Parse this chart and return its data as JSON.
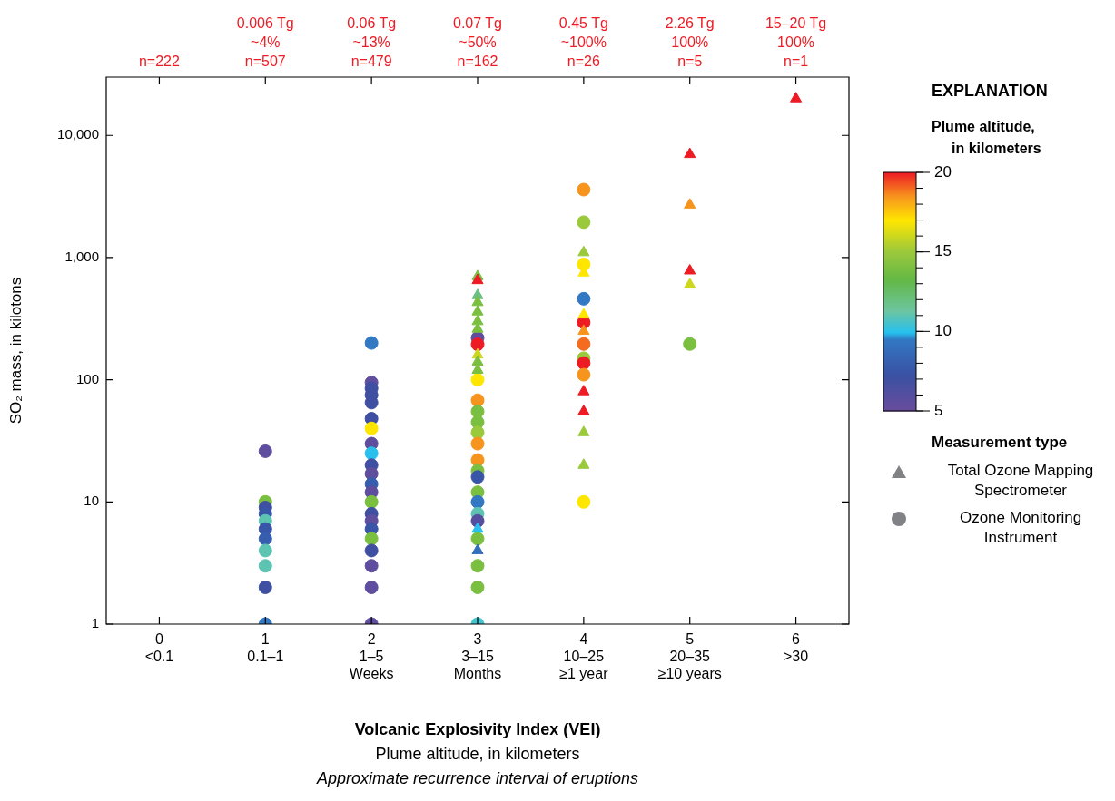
{
  "chart_data": {
    "type": "scatter",
    "xlabel": "Volcanic Explosivity Index (VEI)\nPlume altitude, in kilometers\nApproximate recurrence interval of eruptions",
    "ylabel": "SO₂ mass, in kilotons",
    "legend_title": "Measurement type",
    "clabel": "Plume altitude,\nin kilometers",
    "clim": [
      5,
      20
    ],
    "cticks": [
      5,
      10,
      15,
      20
    ],
    "categories": [
      "0\n<0.1",
      "1\n0.1–1",
      "2\n1–5\nWeeks",
      "3\n3–15\nMonths",
      "4\n10–25\n≥1 year",
      "5\n20–35\n≥10 years",
      "6\n>30"
    ],
    "ylim": [
      1,
      30000
    ],
    "yticks": [
      1,
      10,
      100,
      {
        "value": 1000,
        "label": "1,000"
      },
      {
        "value": 10000,
        "label": "10,000"
      }
    ],
    "log": "y",
    "grid": false,
    "legend": "right",
    "annotations": [
      "n=222",
      "0.006 Tg\n~4%\nn=507",
      "0.06 Tg\n~13%\nn=479",
      "0.07 Tg\n~50%\nn=162",
      "0.45 Tg\n~100%\nn=26",
      "2.26 Tg\n100%\nn=5",
      "15–20 Tg\n100%\nn=1",
      "EXPLANATION"
    ],
    "series": [
      {
        "name": "Total Ozone Mapping Spectrometer",
        "marker": "triangle",
        "colors": [
          "#7bbf41",
          "#ed1c24",
          "#69c080",
          "#7bbf41",
          "#7bbf41",
          "#7bbf41",
          "#7bbf41",
          "#ccd71e",
          "#7bbf41",
          "#7bbf41",
          "#27c0f0",
          "#346fbc",
          "#9ac93b",
          "#ffe600",
          "#ffe600",
          "#f7941d",
          "#ed1c24",
          "#ed1c24",
          "#9ac93b",
          "#9ac93b",
          "#ed1c24",
          "#f7941d",
          "#ed1c24",
          "#ccd71e",
          "#ed1c24"
        ],
        "x": [
          "3\n3–15\nMonths",
          "3\n3–15\nMonths",
          "3\n3–15\nMonths",
          "3\n3–15\nMonths",
          "3\n3–15\nMonths",
          "3\n3–15\nMonths",
          "3\n3–15\nMonths",
          "3\n3–15\nMonths",
          "3\n3–15\nMonths",
          "3\n3–15\nMonths",
          "3\n3–15\nMonths",
          "3\n3–15\nMonths",
          "4\n10–25\n≥1 year",
          "4\n10–25\n≥1 year",
          "4\n10–25\n≥1 year",
          "4\n10–25\n≥1 year",
          "4\n10–25\n≥1 year",
          "4\n10–25\n≥1 year",
          "4\n10–25\n≥1 year",
          "4\n10–25\n≥1 year",
          "5\n20–35\n≥10 years",
          "5\n20–35\n≥10 years",
          "5\n20–35\n≥10 years",
          "5\n20–35\n≥10 years",
          "6\n>30"
        ],
        "values": [
          700,
          650,
          490,
          430,
          360,
          300,
          260,
          160,
          140,
          120,
          6,
          4,
          1100,
          750,
          340,
          250,
          80,
          55,
          37,
          20,
          7000,
          2700,
          780,
          600,
          20000
        ],
        "cvalues": [
          14,
          20,
          12,
          14,
          14,
          14,
          14,
          16,
          14,
          14,
          10,
          9,
          15,
          17,
          17,
          18.5,
          20,
          20,
          15,
          15,
          20,
          18.5,
          20,
          16,
          20
        ]
      },
      {
        "name": "Ozone Monitoring Instrument",
        "marker": "circle",
        "colors": [
          "#5f4d9e",
          "#7bbf41",
          "#3f50a2",
          "#3955a7",
          "#5ac4b5",
          "#3955a7",
          "#375eae",
          "#5ac4b5",
          "#5ac4b5",
          "#3f50a2",
          "#3278c3",
          "#3278c3",
          "#5f4d9e",
          "#3f50a2",
          "#3f50a2",
          "#3f50a2",
          "#3f50a2",
          "#ffe600",
          "#5f4d9e",
          "#27c0f0",
          "#3f50a2",
          "#5f4d9e",
          "#375eae",
          "#5f4d9e",
          "#7bbf41",
          "#3f50a2",
          "#5f4d9e",
          "#3955a7",
          "#7bbf41",
          "#3f50a2",
          "#5f4d9e",
          "#5f4d9e",
          "#5f4d9e",
          "#5f4d9e",
          "#ed1c24",
          "#ffe600",
          "#f7941d",
          "#7bbf41",
          "#7bbf41",
          "#9ac93b",
          "#f7941d",
          "#f7941d",
          "#7bbf41",
          "#3955a7",
          "#7bbf41",
          "#3278c3",
          "#5ac4b5",
          "#554e9f",
          "#7bbf41",
          "#7bbf41",
          "#7bbf41",
          "#43c2cf",
          "#f7941d",
          "#9ac93b",
          "#ffe600",
          "#3278c3",
          "#ed1c24",
          "#f46c1f",
          "#9ac93b",
          "#ed1c24",
          "#f7941d",
          "#ffe600",
          "#7bbf41"
        ],
        "x": [
          "1\n0.1–1",
          "1\n0.1–1",
          "1\n0.1–1",
          "1\n0.1–1",
          "1\n0.1–1",
          "1\n0.1–1",
          "1\n0.1–1",
          "1\n0.1–1",
          "1\n0.1–1",
          "1\n0.1–1",
          "1\n0.1–1",
          "2\n1–5\nWeeks",
          "2\n1–5\nWeeks",
          "2\n1–5\nWeeks",
          "2\n1–5\nWeeks",
          "2\n1–5\nWeeks",
          "2\n1–5\nWeeks",
          "2\n1–5\nWeeks",
          "2\n1–5\nWeeks",
          "2\n1–5\nWeeks",
          "2\n1–5\nWeeks",
          "2\n1–5\nWeeks",
          "2\n1–5\nWeeks",
          "2\n1–5\nWeeks",
          "2\n1–5\nWeeks",
          "2\n1–5\nWeeks",
          "2\n1–5\nWeeks",
          "2\n1–5\nWeeks",
          "2\n1–5\nWeeks",
          "2\n1–5\nWeeks",
          "2\n1–5\nWeeks",
          "2\n1–5\nWeeks",
          "2\n1–5\nWeeks",
          "3\n3–15\nMonths",
          "3\n3–15\nMonths",
          "3\n3–15\nMonths",
          "3\n3–15\nMonths",
          "3\n3–15\nMonths",
          "3\n3–15\nMonths",
          "3\n3–15\nMonths",
          "3\n3–15\nMonths",
          "3\n3–15\nMonths",
          "3\n3–15\nMonths",
          "3\n3–15\nMonths",
          "3\n3–15\nMonths",
          "3\n3–15\nMonths",
          "3\n3–15\nMonths",
          "3\n3–15\nMonths",
          "3\n3–15\nMonths",
          "3\n3–15\nMonths",
          "3\n3–15\nMonths",
          "3\n3–15\nMonths",
          "4\n10–25\n≥1 year",
          "4\n10–25\n≥1 year",
          "4\n10–25\n≥1 year",
          "4\n10–25\n≥1 year",
          "4\n10–25\n≥1 year",
          "4\n10–25\n≥1 year",
          "4\n10–25\n≥1 year",
          "4\n10–25\n≥1 year",
          "4\n10–25\n≥1 year",
          "4\n10–25\n≥1 year",
          "5\n20–35\n≥10 years"
        ],
        "values": [
          26,
          10,
          9,
          8,
          7,
          6,
          5,
          4,
          3,
          2,
          1,
          200,
          95,
          85,
          75,
          65,
          48,
          40,
          30,
          25,
          20,
          17,
          14,
          12,
          10,
          8,
          7,
          6,
          5,
          4,
          3,
          2,
          1,
          220,
          195,
          100,
          68,
          55,
          45,
          37,
          30,
          22,
          18,
          16,
          12,
          10,
          8,
          7,
          5,
          3,
          2,
          1,
          3600,
          1950,
          880,
          460,
          295,
          196,
          150,
          137,
          110,
          10,
          196
        ],
        "cvalues": [
          5.5,
          14,
          7,
          7.5,
          11,
          7.5,
          8,
          11,
          11,
          7,
          9.5,
          9.5,
          5.5,
          7,
          7,
          7,
          7,
          17,
          5.5,
          10,
          7,
          5.5,
          8,
          5.5,
          14,
          7,
          5.5,
          7.5,
          14,
          7,
          5.5,
          5.5,
          5.5,
          5.5,
          20,
          17,
          18.5,
          14,
          14,
          15,
          18.5,
          18.5,
          14,
          7.5,
          14,
          9.5,
          11,
          6,
          14,
          14,
          14,
          10.5,
          18.5,
          15,
          17,
          9.5,
          20,
          19,
          15,
          20,
          18.5,
          17,
          14
        ]
      }
    ]
  }
}
